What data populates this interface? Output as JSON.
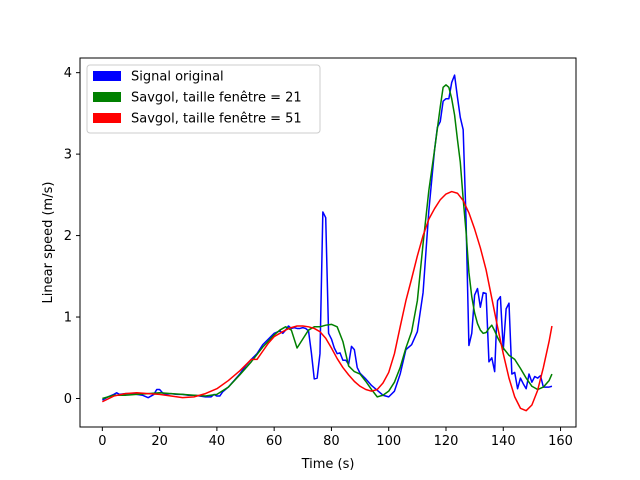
{
  "chart_data": {
    "type": "line",
    "title": "",
    "xlabel": "Time (s)",
    "ylabel": "Linear speed (m/s)",
    "xlim": [
      -7.8,
      165.4
    ],
    "ylim": [
      -0.35,
      4.18
    ],
    "xticks": [
      0,
      20,
      40,
      60,
      80,
      100,
      120,
      140,
      160
    ],
    "yticks": [
      0,
      1,
      2,
      3,
      4
    ],
    "grid": false,
    "legend_position": "top-left",
    "series": [
      {
        "name": "Signal original",
        "color": "#0000ff",
        "points": [
          [
            0,
            -0.02
          ],
          [
            2,
            0.02
          ],
          [
            4,
            0.05
          ],
          [
            5,
            0.07
          ],
          [
            6,
            0.05
          ],
          [
            8,
            0.06
          ],
          [
            10,
            0.06
          ],
          [
            12,
            0.05
          ],
          [
            14,
            0.04
          ],
          [
            16,
            0.01
          ],
          [
            18,
            0.05
          ],
          [
            19,
            0.11
          ],
          [
            20,
            0.11
          ],
          [
            21,
            0.07
          ],
          [
            22,
            0.05
          ],
          [
            24,
            0.06
          ],
          [
            26,
            0.05
          ],
          [
            28,
            0.05
          ],
          [
            30,
            0.04
          ],
          [
            32,
            0.04
          ],
          [
            34,
            0.03
          ],
          [
            36,
            0.02
          ],
          [
            38,
            0.02
          ],
          [
            39,
            0.05
          ],
          [
            40,
            0.03
          ],
          [
            41,
            0.03
          ],
          [
            42,
            0.08
          ],
          [
            44,
            0.14
          ],
          [
            46,
            0.22
          ],
          [
            48,
            0.3
          ],
          [
            50,
            0.4
          ],
          [
            52,
            0.48
          ],
          [
            54,
            0.55
          ],
          [
            56,
            0.66
          ],
          [
            58,
            0.73
          ],
          [
            60,
            0.8
          ],
          [
            62,
            0.83
          ],
          [
            63,
            0.8
          ],
          [
            64,
            0.84
          ],
          [
            65,
            0.89
          ],
          [
            66,
            0.86
          ],
          [
            67,
            0.87
          ],
          [
            68,
            0.86
          ],
          [
            69,
            0.86
          ],
          [
            70,
            0.87
          ],
          [
            71,
            0.86
          ],
          [
            72,
            0.83
          ],
          [
            73,
            0.56
          ],
          [
            74,
            0.24
          ],
          [
            75,
            0.25
          ],
          [
            76,
            0.55
          ],
          [
            77,
            2.29
          ],
          [
            78,
            2.22
          ],
          [
            79,
            0.8
          ],
          [
            80,
            0.73
          ],
          [
            81,
            0.62
          ],
          [
            82,
            0.55
          ],
          [
            83,
            0.56
          ],
          [
            84,
            0.47
          ],
          [
            85,
            0.47
          ],
          [
            86,
            0.42
          ],
          [
            87,
            0.64
          ],
          [
            88,
            0.6
          ],
          [
            89,
            0.38
          ],
          [
            90,
            0.31
          ],
          [
            92,
            0.24
          ],
          [
            94,
            0.16
          ],
          [
            96,
            0.1
          ],
          [
            98,
            0.04
          ],
          [
            100,
            0.02
          ],
          [
            102,
            0.09
          ],
          [
            104,
            0.3
          ],
          [
            106,
            0.6
          ],
          [
            108,
            0.66
          ],
          [
            110,
            0.82
          ],
          [
            112,
            1.3
          ],
          [
            114,
            2.3
          ],
          [
            116,
            3.05
          ],
          [
            117,
            3.33
          ],
          [
            118,
            3.4
          ],
          [
            119,
            3.65
          ],
          [
            120,
            3.68
          ],
          [
            121,
            3.68
          ],
          [
            122,
            3.88
          ],
          [
            123,
            3.97
          ],
          [
            124,
            3.7
          ],
          [
            125,
            3.45
          ],
          [
            126,
            3.3
          ],
          [
            127,
            2.2
          ],
          [
            128,
            0.65
          ],
          [
            129,
            0.8
          ],
          [
            130,
            1.27
          ],
          [
            131,
            1.35
          ],
          [
            132,
            1.12
          ],
          [
            133,
            1.3
          ],
          [
            134,
            1.29
          ],
          [
            135,
            0.45
          ],
          [
            136,
            0.5
          ],
          [
            137,
            0.33
          ],
          [
            138,
            1.2
          ],
          [
            139,
            1.25
          ],
          [
            140,
            0.6
          ],
          [
            141,
            1.1
          ],
          [
            142,
            1.17
          ],
          [
            143,
            0.3
          ],
          [
            144,
            0.32
          ],
          [
            145,
            0.12
          ],
          [
            146,
            0.25
          ],
          [
            147,
            0.18
          ],
          [
            148,
            0.12
          ],
          [
            149,
            0.3
          ],
          [
            150,
            0.2
          ],
          [
            151,
            0.27
          ],
          [
            152,
            0.25
          ],
          [
            153,
            0.28
          ],
          [
            154,
            0.14
          ],
          [
            156,
            0.14
          ],
          [
            157,
            0.15
          ]
        ]
      },
      {
        "name": "Savgol, taille fenêtre = 21",
        "color": "#008000",
        "points": [
          [
            0,
            0.0
          ],
          [
            4,
            0.04
          ],
          [
            8,
            0.04
          ],
          [
            12,
            0.05
          ],
          [
            16,
            0.06
          ],
          [
            20,
            0.07
          ],
          [
            24,
            0.06
          ],
          [
            28,
            0.05
          ],
          [
            32,
            0.04
          ],
          [
            36,
            0.03
          ],
          [
            40,
            0.05
          ],
          [
            44,
            0.14
          ],
          [
            48,
            0.29
          ],
          [
            52,
            0.45
          ],
          [
            56,
            0.63
          ],
          [
            60,
            0.78
          ],
          [
            62,
            0.84
          ],
          [
            64,
            0.88
          ],
          [
            66,
            0.84
          ],
          [
            68,
            0.62
          ],
          [
            70,
            0.73
          ],
          [
            72,
            0.84
          ],
          [
            74,
            0.88
          ],
          [
            76,
            0.88
          ],
          [
            78,
            0.9
          ],
          [
            80,
            0.91
          ],
          [
            82,
            0.88
          ],
          [
            84,
            0.7
          ],
          [
            86,
            0.4
          ],
          [
            88,
            0.33
          ],
          [
            90,
            0.3
          ],
          [
            92,
            0.21
          ],
          [
            94,
            0.11
          ],
          [
            96,
            0.02
          ],
          [
            98,
            0.04
          ],
          [
            100,
            0.09
          ],
          [
            102,
            0.2
          ],
          [
            104,
            0.38
          ],
          [
            106,
            0.62
          ],
          [
            108,
            0.82
          ],
          [
            110,
            1.2
          ],
          [
            112,
            1.9
          ],
          [
            114,
            2.55
          ],
          [
            116,
            3.05
          ],
          [
            118,
            3.58
          ],
          [
            119,
            3.82
          ],
          [
            120,
            3.85
          ],
          [
            121,
            3.82
          ],
          [
            122,
            3.68
          ],
          [
            123,
            3.48
          ],
          [
            124,
            3.18
          ],
          [
            125,
            2.9
          ],
          [
            126,
            2.45
          ],
          [
            127,
            2.05
          ],
          [
            128,
            1.55
          ],
          [
            129,
            1.25
          ],
          [
            130,
            1.05
          ],
          [
            131,
            0.92
          ],
          [
            132,
            0.84
          ],
          [
            133,
            0.8
          ],
          [
            134,
            0.81
          ],
          [
            135,
            0.86
          ],
          [
            136,
            0.9
          ],
          [
            137,
            0.83
          ],
          [
            138,
            0.75
          ],
          [
            140,
            0.62
          ],
          [
            142,
            0.53
          ],
          [
            144,
            0.48
          ],
          [
            146,
            0.37
          ],
          [
            148,
            0.25
          ],
          [
            150,
            0.15
          ],
          [
            152,
            0.11
          ],
          [
            154,
            0.14
          ],
          [
            156,
            0.22
          ],
          [
            157,
            0.3
          ]
        ]
      },
      {
        "name": "Savgol, taille fenêtre = 51",
        "color": "#ff0000",
        "points": [
          [
            0,
            -0.04
          ],
          [
            4,
            0.03
          ],
          [
            8,
            0.06
          ],
          [
            12,
            0.07
          ],
          [
            16,
            0.06
          ],
          [
            20,
            0.05
          ],
          [
            24,
            0.03
          ],
          [
            28,
            0.01
          ],
          [
            32,
            0.02
          ],
          [
            36,
            0.06
          ],
          [
            40,
            0.12
          ],
          [
            44,
            0.22
          ],
          [
            48,
            0.34
          ],
          [
            52,
            0.48
          ],
          [
            54,
            0.48
          ],
          [
            56,
            0.58
          ],
          [
            58,
            0.68
          ],
          [
            60,
            0.76
          ],
          [
            62,
            0.8
          ],
          [
            64,
            0.84
          ],
          [
            66,
            0.87
          ],
          [
            68,
            0.89
          ],
          [
            70,
            0.89
          ],
          [
            72,
            0.88
          ],
          [
            74,
            0.86
          ],
          [
            76,
            0.82
          ],
          [
            78,
            0.74
          ],
          [
            80,
            0.62
          ],
          [
            82,
            0.49
          ],
          [
            84,
            0.38
          ],
          [
            86,
            0.29
          ],
          [
            88,
            0.21
          ],
          [
            90,
            0.15
          ],
          [
            92,
            0.11
          ],
          [
            94,
            0.09
          ],
          [
            96,
            0.11
          ],
          [
            98,
            0.19
          ],
          [
            100,
            0.32
          ],
          [
            102,
            0.55
          ],
          [
            104,
            0.88
          ],
          [
            106,
            1.2
          ],
          [
            108,
            1.47
          ],
          [
            110,
            1.75
          ],
          [
            112,
            2.0
          ],
          [
            114,
            2.2
          ],
          [
            116,
            2.33
          ],
          [
            118,
            2.44
          ],
          [
            120,
            2.51
          ],
          [
            122,
            2.54
          ],
          [
            124,
            2.52
          ],
          [
            126,
            2.43
          ],
          [
            128,
            2.28
          ],
          [
            130,
            2.08
          ],
          [
            132,
            1.85
          ],
          [
            134,
            1.58
          ],
          [
            136,
            1.23
          ],
          [
            138,
            0.88
          ],
          [
            140,
            0.55
          ],
          [
            142,
            0.25
          ],
          [
            144,
            0.02
          ],
          [
            146,
            -0.12
          ],
          [
            148,
            -0.15
          ],
          [
            150,
            -0.08
          ],
          [
            152,
            0.1
          ],
          [
            154,
            0.38
          ],
          [
            156,
            0.7
          ],
          [
            157,
            0.89
          ]
        ]
      }
    ]
  }
}
